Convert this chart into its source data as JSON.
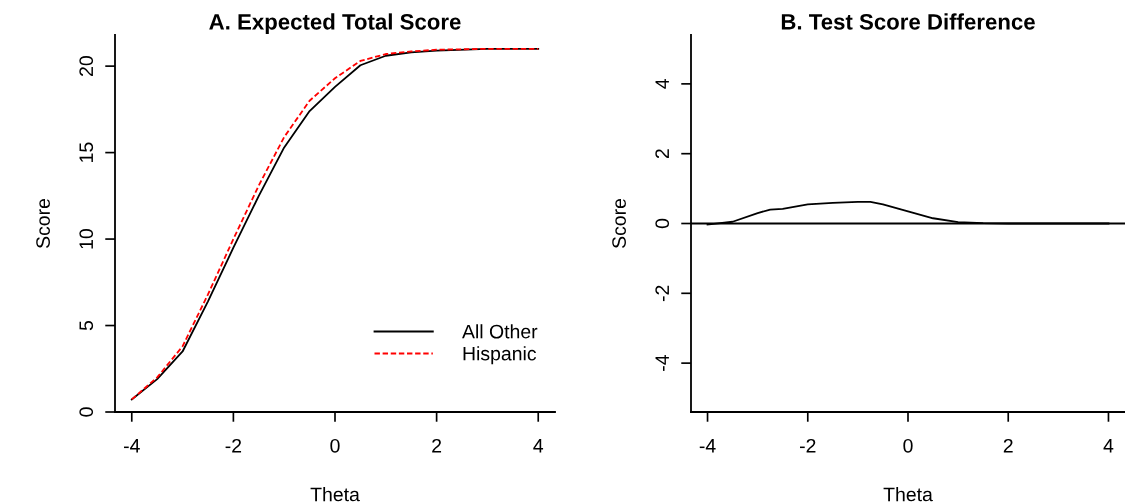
{
  "chart_data": [
    {
      "type": "line",
      "title": "A. Expected Total Score",
      "xlabel": "Theta",
      "ylabel": "Score",
      "xlim": [
        -4.33,
        4.33
      ],
      "ylim": [
        0,
        21.8
      ],
      "xticks": [
        -4,
        -2,
        0,
        2,
        4
      ],
      "yticks": [
        0,
        5,
        10,
        15,
        20
      ],
      "grid": false,
      "legend": "bottom right",
      "series": [
        {
          "name": "All Other",
          "color": "#000000",
          "line_style": "solid",
          "x": [
            -4,
            -3.5,
            -3,
            -2.5,
            -2,
            -1.5,
            -1,
            -0.5,
            0,
            0.5,
            1,
            1.5,
            2,
            3,
            4
          ],
          "values": [
            0.73,
            1.9,
            3.5,
            6.4,
            9.5,
            12.5,
            15.3,
            17.4,
            18.8,
            20.05,
            20.6,
            20.8,
            20.9,
            21.0,
            21.0
          ]
        },
        {
          "name": "Hispanic",
          "color": "#ff0000",
          "line_style": "dashed",
          "x": [
            -4,
            -3.5,
            -3,
            -2.5,
            -2,
            -1.5,
            -1,
            -0.5,
            0,
            0.5,
            1,
            1.5,
            2,
            3,
            4
          ],
          "values": [
            0.73,
            2.0,
            3.8,
            6.8,
            10.0,
            13.1,
            15.9,
            18.0,
            19.3,
            20.3,
            20.7,
            20.85,
            20.95,
            21.0,
            21.0
          ]
        }
      ]
    },
    {
      "type": "line",
      "title": "B. Test Score Difference",
      "xlabel": "Theta",
      "ylabel": "Score",
      "xlim": [
        -4.33,
        4.33
      ],
      "ylim": [
        -5.4,
        5.4
      ],
      "xticks": [
        -4,
        -2,
        0,
        2,
        4
      ],
      "yticks": [
        -4,
        -2,
        0,
        2,
        4
      ],
      "grid": false,
      "legend": false,
      "ref_lines": [
        {
          "axis": "y",
          "value": 0,
          "color": "#000000"
        }
      ],
      "series": [
        {
          "color": "#000000",
          "line_style": "solid",
          "x": [
            -4,
            -3.5,
            -3,
            -2.75,
            -2.5,
            -2,
            -1.5,
            -1,
            -0.75,
            -0.5,
            0,
            0.5,
            1,
            1.5,
            2,
            4
          ],
          "values": [
            -0.03,
            0.05,
            0.3,
            0.4,
            0.42,
            0.55,
            0.59,
            0.62,
            0.62,
            0.55,
            0.35,
            0.15,
            0.04,
            0.01,
            0,
            0
          ]
        }
      ]
    }
  ]
}
